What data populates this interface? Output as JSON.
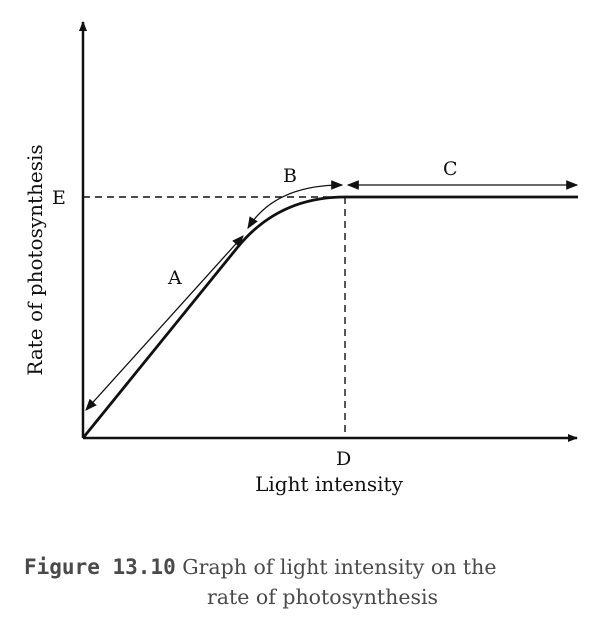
{
  "diagram": {
    "y_axis_label": "Rate of photosynthesis",
    "x_axis_label": "Light intensity",
    "labels": {
      "A": "A",
      "B": "B",
      "C": "C",
      "D": "D",
      "E": "E"
    }
  },
  "caption": {
    "label": "Figure 13.10",
    "text_line1": "Graph of light intensity on the",
    "text_line2": "rate of photosynthesis"
  },
  "colors": {
    "ink": "#111111",
    "caption": "#4a4a4a"
  }
}
